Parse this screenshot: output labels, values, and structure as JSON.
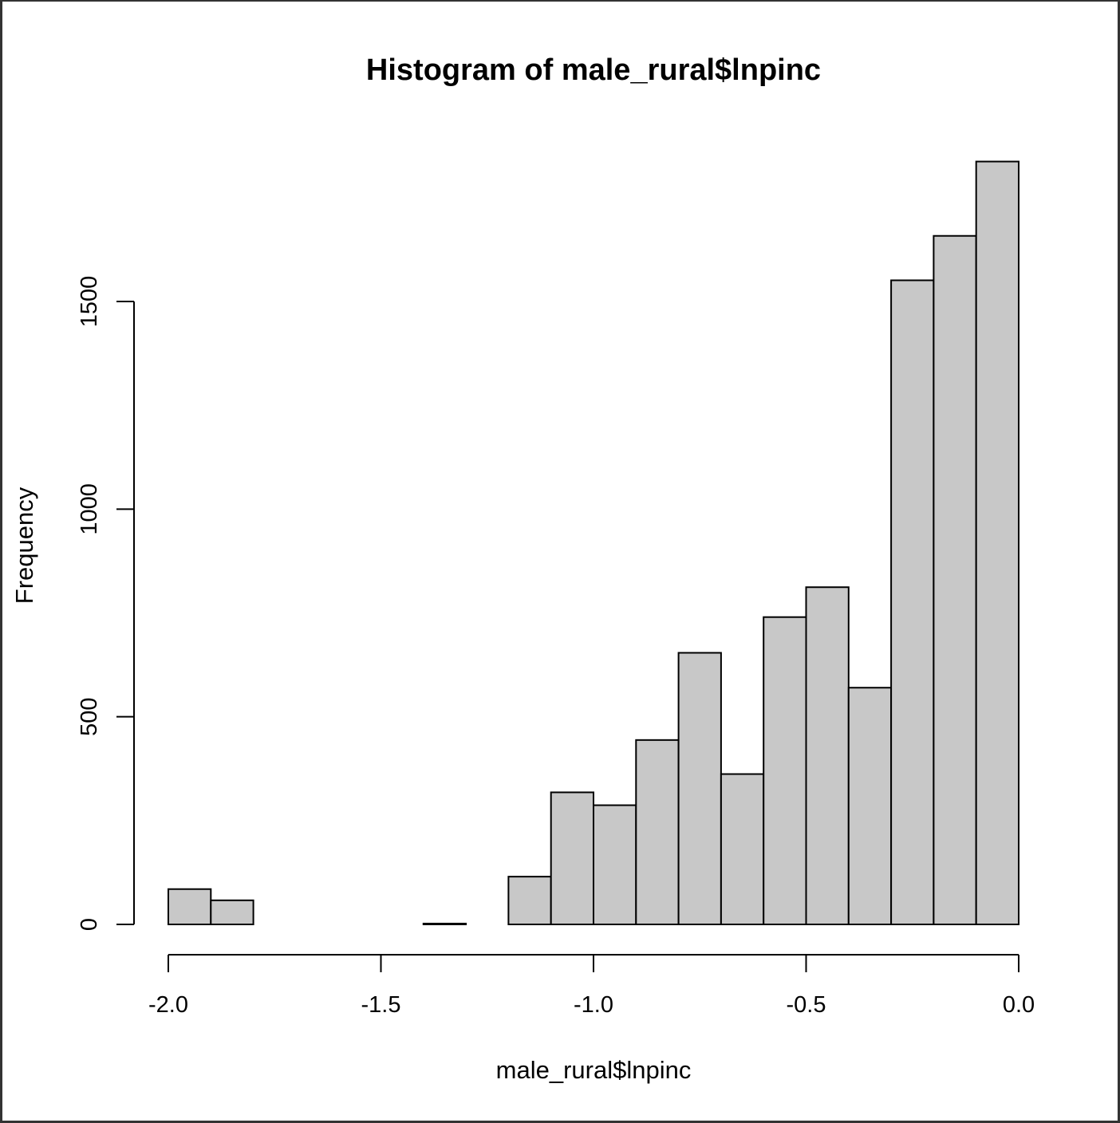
{
  "chart_data": {
    "type": "bar",
    "title": "Histogram of male_rural$lnpinc",
    "xlabel": "male_rural$lnpinc",
    "ylabel": "Frequency",
    "bins": [
      {
        "x0": -2.0,
        "x1": -1.9,
        "count": 85
      },
      {
        "x0": -1.9,
        "x1": -1.8,
        "count": 58
      },
      {
        "x0": -1.8,
        "x1": -1.7,
        "count": 0
      },
      {
        "x0": -1.7,
        "x1": -1.6,
        "count": 0
      },
      {
        "x0": -1.6,
        "x1": -1.5,
        "count": 0
      },
      {
        "x0": -1.5,
        "x1": -1.4,
        "count": 0
      },
      {
        "x0": -1.4,
        "x1": -1.3,
        "count": 2
      },
      {
        "x0": -1.3,
        "x1": -1.2,
        "count": 0
      },
      {
        "x0": -1.2,
        "x1": -1.1,
        "count": 115
      },
      {
        "x0": -1.1,
        "x1": -1.0,
        "count": 318
      },
      {
        "x0": -1.0,
        "x1": -0.9,
        "count": 287
      },
      {
        "x0": -0.9,
        "x1": -0.8,
        "count": 444
      },
      {
        "x0": -0.8,
        "x1": -0.7,
        "count": 654
      },
      {
        "x0": -0.7,
        "x1": -0.6,
        "count": 362
      },
      {
        "x0": -0.6,
        "x1": -0.5,
        "count": 740
      },
      {
        "x0": -0.5,
        "x1": -0.4,
        "count": 812
      },
      {
        "x0": -0.4,
        "x1": -0.3,
        "count": 570
      },
      {
        "x0": -0.3,
        "x1": -0.2,
        "count": 1551
      },
      {
        "x0": -0.2,
        "x1": -0.1,
        "count": 1658
      },
      {
        "x0": -0.1,
        "x1": 0.0,
        "count": 1837
      }
    ],
    "xlim": [
      -2.0,
      0.0
    ],
    "ylim": [
      0,
      1837
    ],
    "x_ticks": [
      -2.0,
      -1.5,
      -1.0,
      -0.5,
      0.0
    ],
    "x_tick_labels": [
      "-2.0",
      "-1.5",
      "-1.0",
      "-0.5",
      "0.0"
    ],
    "y_ticks": [
      0,
      500,
      1000,
      1500
    ],
    "y_tick_labels": [
      "0",
      "500",
      "1000",
      "1500"
    ],
    "grid": false,
    "bar_fill": "#c8c8c8",
    "bar_stroke": "#000000"
  }
}
